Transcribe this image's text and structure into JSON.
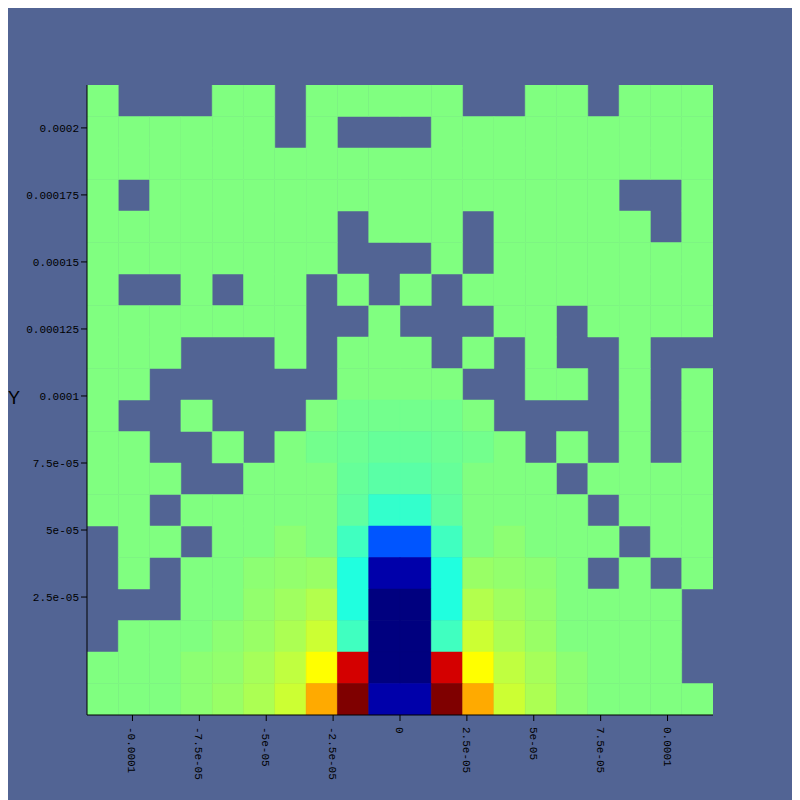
{
  "chart_data": {
    "type": "heatmap",
    "ylabel": "Y",
    "xlim": [
      -0.000117,
      0.000117
    ],
    "ylim": [
      -1.9e-05,
      0.000216
    ],
    "xticks": [
      -0.0001,
      {
        "value": -7.5e-05,
        "label": "-7.5e-05"
      },
      {
        "value": -5e-05,
        "label": "-5e-05"
      },
      {
        "value": -2.5e-05,
        "label": "-2.5e-05"
      },
      0,
      {
        "value": 2.5e-05,
        "label": "2.5e-05"
      },
      {
        "value": 5e-05,
        "label": "5e-05"
      },
      {
        "value": 7.5e-05,
        "label": "7.5e-05"
      },
      0.0001
    ],
    "yticks": [
      {
        "value": 2.5e-05,
        "label": "2.5e-05"
      },
      {
        "value": 5e-05,
        "label": "5e-05"
      },
      {
        "value": 7.5e-05,
        "label": "7.5e-05"
      },
      0.0001,
      0.000125,
      0.00015,
      0.000175,
      0.0002
    ],
    "zlim": [
      0,
      1
    ],
    "cells": [
      [
        0.5,
        null,
        null,
        null,
        0.5,
        0.5,
        null,
        0.5,
        0.5,
        0.5,
        0.5,
        0.5,
        null,
        null,
        0.5,
        0.5,
        null,
        0.5,
        0.5,
        0.5
      ],
      [
        0.5,
        0.5,
        0.5,
        0.5,
        0.5,
        0.5,
        null,
        0.5,
        null,
        null,
        null,
        0.5,
        0.5,
        0.5,
        0.5,
        0.5,
        0.5,
        0.5,
        0.5,
        0.5
      ],
      [
        0.5,
        0.5,
        0.5,
        0.5,
        0.5,
        0.5,
        0.5,
        0.5,
        0.5,
        0.5,
        0.5,
        0.5,
        0.5,
        0.5,
        0.5,
        0.5,
        0.5,
        0.5,
        0.5,
        0.5
      ],
      [
        0.5,
        null,
        0.5,
        0.5,
        0.5,
        0.5,
        0.5,
        0.5,
        0.5,
        0.5,
        0.5,
        0.5,
        0.5,
        0.5,
        0.5,
        0.5,
        0.5,
        null,
        null,
        0.5
      ],
      [
        0.5,
        0.5,
        0.5,
        0.5,
        0.5,
        0.5,
        0.5,
        0.5,
        null,
        0.5,
        0.5,
        0.5,
        null,
        0.5,
        0.5,
        0.5,
        0.5,
        0.5,
        null,
        0.5
      ],
      [
        0.5,
        0.5,
        0.5,
        0.5,
        0.5,
        0.5,
        0.5,
        0.5,
        null,
        null,
        null,
        0.5,
        null,
        0.5,
        0.5,
        0.5,
        0.5,
        0.5,
        0.5,
        0.5
      ],
      [
        0.5,
        null,
        null,
        0.5,
        null,
        0.5,
        0.5,
        null,
        0.5,
        null,
        0.5,
        null,
        0.5,
        0.5,
        0.5,
        0.5,
        0.5,
        0.5,
        0.5,
        0.5
      ],
      [
        0.5,
        0.5,
        0.5,
        0.5,
        0.5,
        0.5,
        0.5,
        null,
        null,
        0.5,
        null,
        null,
        null,
        0.5,
        0.5,
        null,
        0.5,
        0.5,
        0.5,
        0.5
      ],
      [
        0.5,
        0.5,
        0.5,
        null,
        null,
        null,
        0.5,
        null,
        0.5,
        0.5,
        0.5,
        null,
        0.5,
        null,
        0.5,
        null,
        null,
        0.5,
        null,
        null
      ],
      [
        0.5,
        0.5,
        null,
        null,
        null,
        null,
        null,
        null,
        0.5,
        0.5,
        0.5,
        0.5,
        null,
        null,
        0.5,
        0.5,
        null,
        0.5,
        null,
        0.5
      ],
      [
        0.5,
        null,
        null,
        0.5,
        null,
        null,
        null,
        0.5,
        0.48,
        0.48,
        0.48,
        0.48,
        0.5,
        null,
        null,
        null,
        null,
        0.5,
        null,
        0.5
      ],
      [
        0.5,
        0.5,
        null,
        null,
        0.5,
        null,
        0.5,
        0.48,
        0.47,
        0.46,
        0.46,
        0.47,
        0.48,
        0.5,
        null,
        0.5,
        null,
        0.5,
        null,
        0.5
      ],
      [
        0.5,
        0.5,
        0.5,
        null,
        null,
        0.5,
        0.5,
        0.5,
        0.46,
        0.44,
        0.44,
        0.46,
        0.5,
        0.5,
        0.5,
        null,
        0.5,
        0.5,
        0.5,
        0.5
      ],
      [
        0.5,
        0.5,
        null,
        0.5,
        0.5,
        0.5,
        0.5,
        0.5,
        0.45,
        0.38,
        0.38,
        0.45,
        0.5,
        0.5,
        0.5,
        0.5,
        null,
        0.5,
        0.5,
        0.5
      ],
      [
        null,
        0.5,
        0.5,
        null,
        0.5,
        0.5,
        0.52,
        0.5,
        0.4,
        0.2,
        0.2,
        0.4,
        0.5,
        0.52,
        0.5,
        0.5,
        0.5,
        null,
        0.5,
        0.5
      ],
      [
        null,
        0.5,
        null,
        0.5,
        0.5,
        0.52,
        0.53,
        0.54,
        0.35,
        0.05,
        0.05,
        0.35,
        0.54,
        0.53,
        0.52,
        0.5,
        null,
        0.5,
        null,
        0.5
      ],
      [
        null,
        null,
        null,
        0.5,
        0.5,
        0.53,
        0.55,
        0.58,
        0.35,
        0.0,
        0.0,
        0.35,
        0.58,
        0.55,
        0.53,
        0.5,
        0.5,
        0.5,
        0.5,
        null
      ],
      [
        null,
        0.5,
        0.5,
        0.5,
        0.52,
        0.54,
        0.57,
        0.62,
        0.4,
        0.0,
        0.0,
        0.4,
        0.62,
        0.57,
        0.54,
        0.5,
        0.5,
        0.5,
        0.5,
        null
      ],
      [
        0.5,
        0.5,
        0.5,
        0.52,
        0.53,
        0.56,
        0.6,
        0.7,
        0.9,
        0.0,
        0.0,
        0.9,
        0.7,
        0.6,
        0.56,
        0.52,
        0.5,
        0.5,
        0.5,
        null
      ],
      [
        0.5,
        0.5,
        0.5,
        0.52,
        0.54,
        0.57,
        0.62,
        0.75,
        1.0,
        0.05,
        0.05,
        1.0,
        0.75,
        0.62,
        0.57,
        0.52,
        0.5,
        0.5,
        0.5,
        0.5
      ]
    ]
  }
}
